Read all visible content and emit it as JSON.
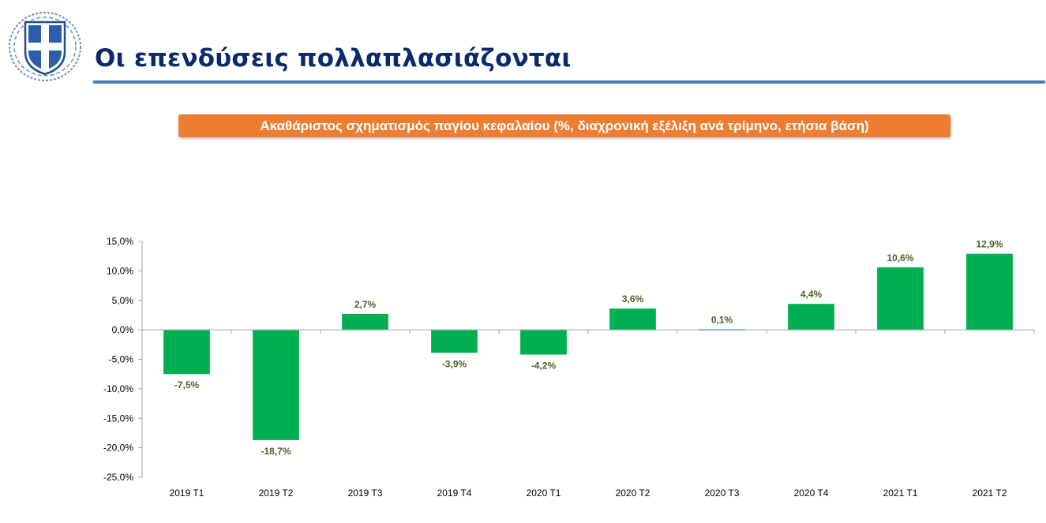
{
  "header": {
    "title": "Οι επενδύσεις πολλαπλασιάζονται",
    "emblem": "greek-coat-of-arms-icon"
  },
  "chart_data": {
    "type": "bar",
    "title": "Ακαθάριστος σχηματισμός παγίου κεφαλαίου (%, διαχρονική εξέλιξη ανά τρίμηνο, ετήσια βάση)",
    "categories": [
      "2019 T1",
      "2019 T2",
      "2019 T3",
      "2019 T4",
      "2020 T1",
      "2020 T2",
      "2020 T3",
      "2020 T4",
      "2021 T1",
      "2021 T2"
    ],
    "values": [
      -7.5,
      -18.7,
      2.7,
      -3.9,
      -4.2,
      3.6,
      0.1,
      4.4,
      10.6,
      12.9
    ],
    "data_labels": [
      "-7,5%",
      "-18,7%",
      "2,7%",
      "-3,9%",
      "-4,2%",
      "3,6%",
      "0,1%",
      "4,4%",
      "10,6%",
      "12,9%"
    ],
    "y_ticks": [
      15,
      10,
      5,
      0,
      -5,
      -10,
      -15,
      -20,
      -25
    ],
    "y_tick_labels": [
      "15,0%",
      "10,0%",
      "5,0%",
      "0,0%",
      "-5,0%",
      "-10,0%",
      "-15,0%",
      "-20,0%",
      "-25,0%"
    ],
    "ylim": [
      -25,
      15
    ],
    "xlabel": "",
    "ylabel": "",
    "grid": false,
    "colors": {
      "bar": "#00b050",
      "data_label": "#4f6228",
      "axis": "#a6a6a6",
      "title_bg": "#ed7d31",
      "title_text": "#ffffff"
    }
  }
}
